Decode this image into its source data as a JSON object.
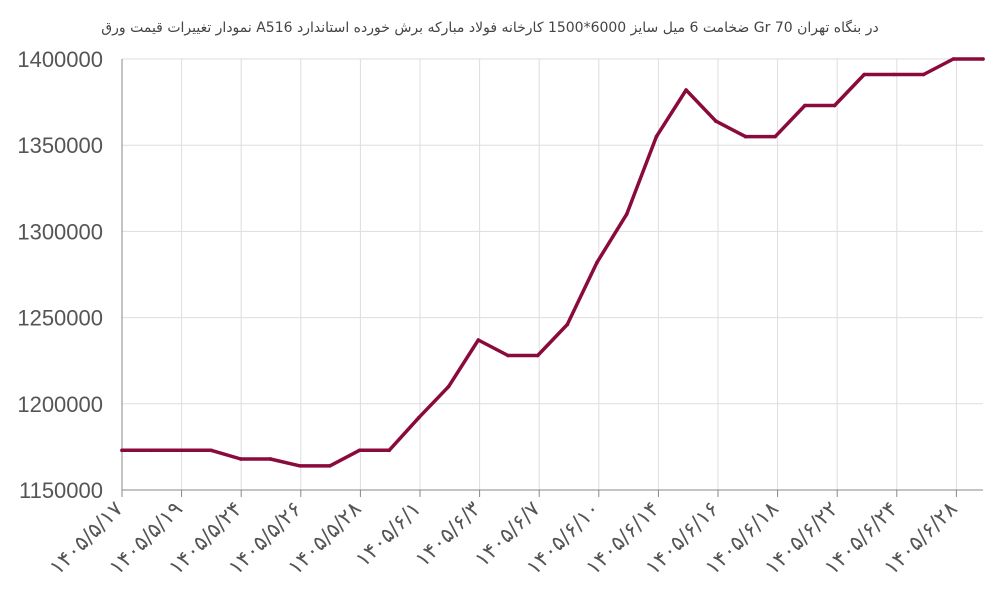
{
  "chart_data": {
    "type": "line",
    "title": "نمودار تغییرات قیمت ورق A516 ضخامت 6 میل سایز 6000*1500 کارخانه فولاد مبارکه برش خورده استاندارد Gr 70 در بنگاه تهران",
    "xlabel": "",
    "ylabel": "",
    "ylim": [
      1150000,
      1400000
    ],
    "y_ticks": [
      "1150000",
      "1200000",
      "1250000",
      "1300000",
      "1350000",
      "1400000"
    ],
    "x_tick_labels": [
      "۱۴۰۵/۵/۱۷",
      "۱۴۰۵/۵/۱۹",
      "۱۴۰۵/۵/۲۴",
      "۱۴۰۵/۵/۲۶",
      "۱۴۰۵/۵/۲۸",
      "۱۴۰۵/۶/۱",
      "۱۴۰۵/۶/۳",
      "۱۴۰۵/۶/۷",
      "۱۴۰۵/۶/۱۰",
      "۱۴۰۵/۶/۱۴",
      "۱۴۰۵/۶/۱۶",
      "۱۴۰۵/۶/۱۸",
      "۱۴۰۵/۶/۲۲",
      "۱۴۰۵/۶/۲۴",
      "۱۴۰۵/۶/۲۸"
    ],
    "grid": true,
    "line_color": "#8b0a3c",
    "series": [
      {
        "values": [
          1173000,
          1173000,
          1173000,
          1173000,
          1168000,
          1168000,
          1164000,
          1164000,
          1173000,
          1173000,
          1192000,
          1210000,
          1237000,
          1228000,
          1228000,
          1246000,
          1282000,
          1310000,
          1355000,
          1382000,
          1364000,
          1355000,
          1355000,
          1373000,
          1373000,
          1391000,
          1391000,
          1391000,
          1400000,
          1400000
        ]
      }
    ]
  }
}
